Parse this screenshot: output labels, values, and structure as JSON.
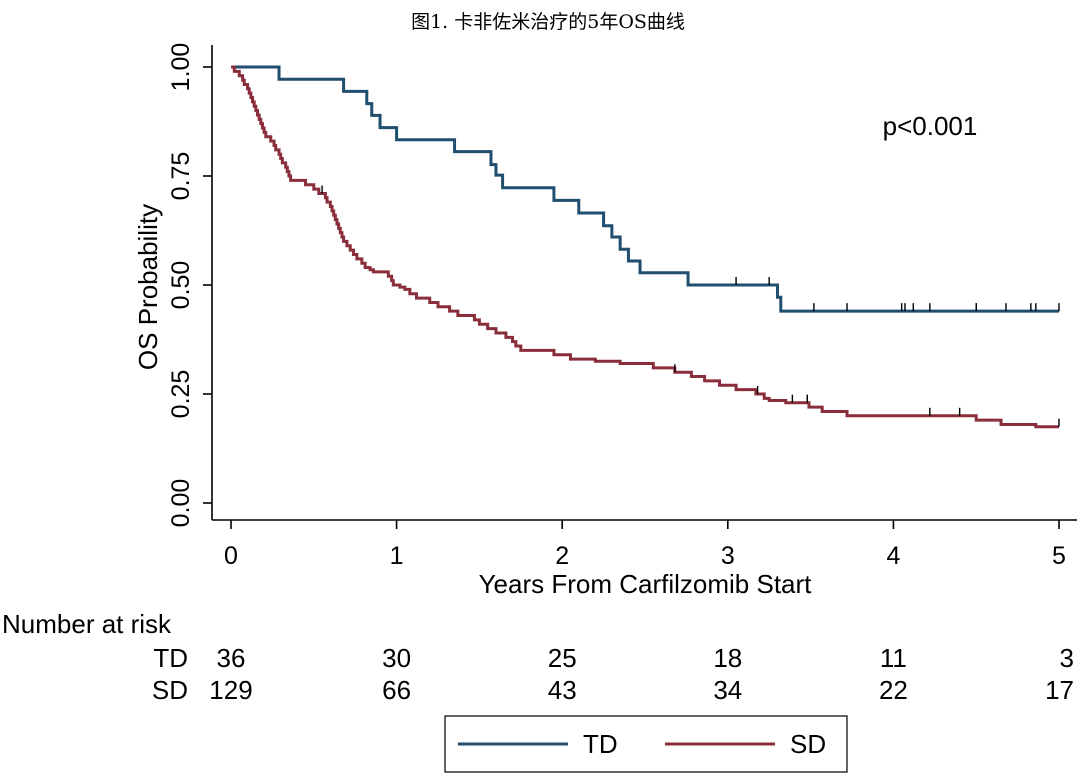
{
  "chart_data": {
    "type": "line",
    "subtype": "kaplan-meier",
    "title": "图1. 卡非佐米治疗的5年OS曲线",
    "xlabel": "Years From Carfilzomib Start",
    "ylabel": "OS Probability",
    "xlim": [
      0,
      5
    ],
    "ylim": [
      0,
      1
    ],
    "x_ticks": [
      0,
      1,
      2,
      3,
      4,
      5
    ],
    "x_tick_labels": [
      "0",
      "1",
      "2",
      "3",
      "4",
      "5"
    ],
    "y_ticks": [
      0,
      0.25,
      0.5,
      0.75,
      1.0
    ],
    "y_tick_labels": [
      "0.00",
      "0.25",
      "0.50",
      "0.75",
      "1.00"
    ],
    "annotation": "p<0.001",
    "series": [
      {
        "name": "TD",
        "color": "#1f4e6e",
        "steps": [
          [
            0,
            1.0
          ],
          [
            0.29,
            0.972
          ],
          [
            0.68,
            0.944
          ],
          [
            0.82,
            0.916
          ],
          [
            0.85,
            0.889
          ],
          [
            0.9,
            0.861
          ],
          [
            1.0,
            0.833
          ],
          [
            1.35,
            0.806
          ],
          [
            1.57,
            0.776
          ],
          [
            1.6,
            0.752
          ],
          [
            1.64,
            0.723
          ],
          [
            1.95,
            0.694
          ],
          [
            2.1,
            0.665
          ],
          [
            2.25,
            0.636
          ],
          [
            2.3,
            0.61
          ],
          [
            2.35,
            0.582
          ],
          [
            2.4,
            0.555
          ],
          [
            2.47,
            0.528
          ],
          [
            2.76,
            0.5
          ],
          [
            3.3,
            0.472
          ],
          [
            3.32,
            0.44
          ],
          [
            5.0,
            0.44
          ]
        ],
        "censor_times": [
          3.05,
          3.25,
          3.52,
          3.72,
          4.05,
          4.07,
          4.12,
          4.22,
          4.5,
          4.5,
          4.68,
          4.83,
          4.86,
          5.0
        ]
      },
      {
        "name": "SD",
        "color": "#8b2e3c",
        "steps": [
          [
            0,
            1.0
          ],
          [
            0.02,
            0.99
          ],
          [
            0.05,
            0.98
          ],
          [
            0.07,
            0.97
          ],
          [
            0.08,
            0.96
          ],
          [
            0.1,
            0.95
          ],
          [
            0.11,
            0.94
          ],
          [
            0.12,
            0.93
          ],
          [
            0.13,
            0.92
          ],
          [
            0.14,
            0.91
          ],
          [
            0.15,
            0.9
          ],
          [
            0.16,
            0.89
          ],
          [
            0.17,
            0.88
          ],
          [
            0.18,
            0.87
          ],
          [
            0.19,
            0.86
          ],
          [
            0.2,
            0.85
          ],
          [
            0.21,
            0.84
          ],
          [
            0.24,
            0.83
          ],
          [
            0.26,
            0.82
          ],
          [
            0.27,
            0.81
          ],
          [
            0.29,
            0.8
          ],
          [
            0.3,
            0.79
          ],
          [
            0.31,
            0.78
          ],
          [
            0.33,
            0.77
          ],
          [
            0.34,
            0.76
          ],
          [
            0.35,
            0.75
          ],
          [
            0.36,
            0.74
          ],
          [
            0.45,
            0.73
          ],
          [
            0.5,
            0.72
          ],
          [
            0.53,
            0.71
          ],
          [
            0.57,
            0.7
          ],
          [
            0.58,
            0.69
          ],
          [
            0.6,
            0.68
          ],
          [
            0.61,
            0.67
          ],
          [
            0.62,
            0.66
          ],
          [
            0.63,
            0.65
          ],
          [
            0.64,
            0.64
          ],
          [
            0.65,
            0.63
          ],
          [
            0.66,
            0.62
          ],
          [
            0.67,
            0.61
          ],
          [
            0.68,
            0.6
          ],
          [
            0.7,
            0.59
          ],
          [
            0.72,
            0.58
          ],
          [
            0.74,
            0.57
          ],
          [
            0.76,
            0.56
          ],
          [
            0.79,
            0.55
          ],
          [
            0.81,
            0.54
          ],
          [
            0.84,
            0.535
          ],
          [
            0.86,
            0.53
          ],
          [
            0.95,
            0.52
          ],
          [
            0.97,
            0.51
          ],
          [
            0.98,
            0.5
          ],
          [
            1.02,
            0.495
          ],
          [
            1.05,
            0.49
          ],
          [
            1.08,
            0.48
          ],
          [
            1.12,
            0.47
          ],
          [
            1.2,
            0.46
          ],
          [
            1.25,
            0.45
          ],
          [
            1.32,
            0.44
          ],
          [
            1.37,
            0.43
          ],
          [
            1.47,
            0.42
          ],
          [
            1.5,
            0.41
          ],
          [
            1.55,
            0.4
          ],
          [
            1.6,
            0.39
          ],
          [
            1.66,
            0.38
          ],
          [
            1.7,
            0.37
          ],
          [
            1.72,
            0.36
          ],
          [
            1.75,
            0.35
          ],
          [
            1.95,
            0.34
          ],
          [
            2.05,
            0.33
          ],
          [
            2.2,
            0.325
          ],
          [
            2.35,
            0.32
          ],
          [
            2.55,
            0.31
          ],
          [
            2.68,
            0.3
          ],
          [
            2.78,
            0.29
          ],
          [
            2.86,
            0.28
          ],
          [
            2.95,
            0.27
          ],
          [
            3.05,
            0.26
          ],
          [
            3.17,
            0.25
          ],
          [
            3.22,
            0.24
          ],
          [
            3.25,
            0.235
          ],
          [
            3.35,
            0.23
          ],
          [
            3.49,
            0.22
          ],
          [
            3.57,
            0.21
          ],
          [
            3.72,
            0.2
          ],
          [
            4.5,
            0.19
          ],
          [
            4.65,
            0.18
          ],
          [
            4.86,
            0.175
          ],
          [
            5.0,
            0.175
          ]
        ],
        "censor_times": [
          0.55,
          2.68,
          3.18,
          3.39,
          3.48,
          3.48,
          4.22,
          4.4,
          5.0
        ]
      }
    ],
    "risk_table": {
      "label": "Number at risk",
      "times": [
        0,
        1,
        2,
        3,
        4,
        5
      ],
      "rows": [
        {
          "group": "TD",
          "values": [
            36,
            30,
            25,
            18,
            11,
            3
          ]
        },
        {
          "group": "SD",
          "values": [
            129,
            66,
            43,
            34,
            22,
            17
          ]
        }
      ]
    },
    "legend": {
      "position": "bottom",
      "entries": [
        "TD",
        "SD"
      ]
    }
  }
}
